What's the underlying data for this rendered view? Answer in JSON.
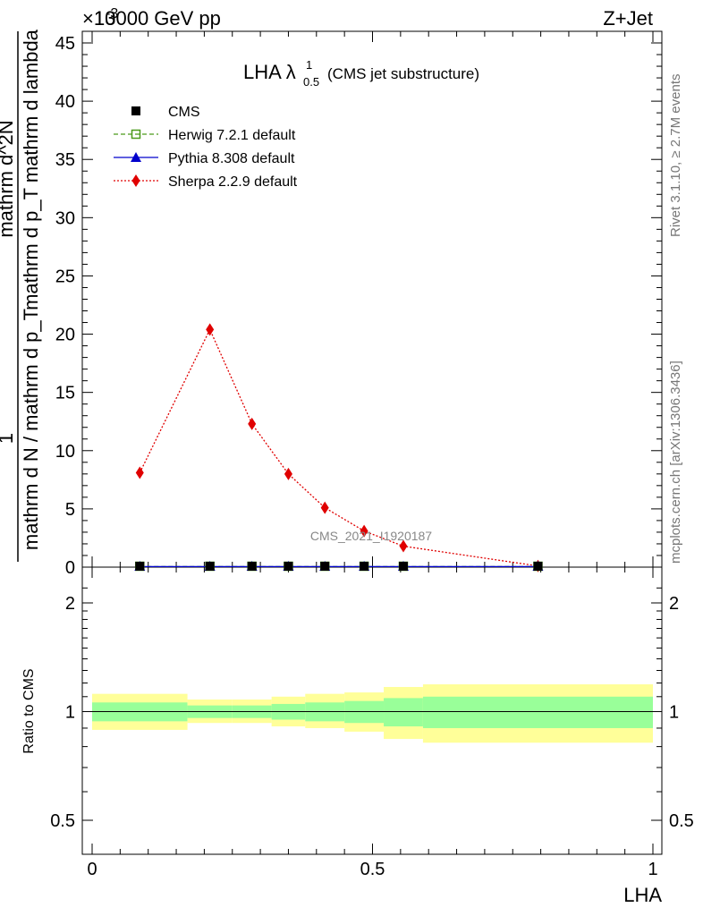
{
  "header": {
    "left": "13000 GeV pp",
    "right": "Z+Jet",
    "exponent": "×10",
    "exponent_power": "-3"
  },
  "side_text": {
    "rivet": "Rivet 3.1.10, ≥ 2.7M events",
    "mcplots": "mcplots.cern.ch [arXiv:1306.3436]"
  },
  "plot_title": {
    "main": "LHA λ",
    "sup": "1",
    "sub": "0.5",
    "rest": "(CMS jet substructure)"
  },
  "watermark": "CMS_2021_I1920187",
  "ylabel_main": {
    "numerator": "1",
    "denominator": "mathrm d N / mathrm d p_T",
    "numerator2": "mathrm d^2N",
    "denominator2": "mathrm d p_T mathrm d lambda"
  },
  "ylabel_ratio": "Ratio to CMS",
  "xlabel": "LHA",
  "legend": [
    {
      "name": "CMS",
      "color": "#000000",
      "marker": "square-filled",
      "line": "none"
    },
    {
      "name": "Herwig 7.2.1 default",
      "color": "#4a9a1a",
      "marker": "square-open",
      "line": "dashed"
    },
    {
      "name": "Pythia 8.308 default",
      "color": "#0000cc",
      "marker": "triangle",
      "line": "solid"
    },
    {
      "name": "Sherpa 2.2.9 default",
      "color": "#e00000",
      "marker": "diamond",
      "line": "dotted"
    }
  ],
  "chart_data": [
    {
      "type": "line",
      "panel": "main",
      "x_ticks": [
        "0",
        "0.5",
        "1"
      ],
      "y_ticks": [
        "0",
        "5",
        "10",
        "15",
        "20",
        "25",
        "30",
        "35",
        "40",
        "45"
      ],
      "xlim": [
        0,
        1
      ],
      "ylim": [
        0,
        46
      ],
      "series": [
        {
          "name": "CMS",
          "x": [
            0.085,
            0.21,
            0.285,
            0.35,
            0.415,
            0.485,
            0.555,
            0.795
          ],
          "values": [
            0.05,
            0.05,
            0.05,
            0.05,
            0.05,
            0.05,
            0.05,
            0.05
          ]
        },
        {
          "name": "Herwig 7.2.1 default",
          "x": [
            0.085,
            0.21,
            0.285,
            0.35,
            0.415,
            0.485,
            0.555,
            0.795
          ],
          "values": [
            0.05,
            0.05,
            0.05,
            0.05,
            0.05,
            0.05,
            0.05,
            0.05
          ]
        },
        {
          "name": "Pythia 8.308 default",
          "x": [
            0.085,
            0.21,
            0.285,
            0.35,
            0.415,
            0.485,
            0.555,
            0.795
          ],
          "values": [
            0.05,
            0.05,
            0.05,
            0.05,
            0.05,
            0.05,
            0.05,
            0.05
          ]
        },
        {
          "name": "Sherpa 2.2.9 default",
          "x": [
            0.085,
            0.21,
            0.285,
            0.35,
            0.415,
            0.485,
            0.555,
            0.795
          ],
          "values": [
            8.1,
            20.4,
            12.3,
            8.0,
            5.1,
            3.1,
            1.8,
            0.1
          ]
        }
      ]
    },
    {
      "type": "area",
      "panel": "ratio",
      "y_ticks": [
        "0.5",
        "1",
        "2"
      ],
      "ylim": [
        0.4,
        2.4
      ],
      "y_scale": "log",
      "bins": [
        0,
        0.17,
        0.25,
        0.32,
        0.38,
        0.45,
        0.52,
        0.59,
        1.0
      ],
      "band_inner": {
        "color": "#99ff99",
        "lo": [
          0.94,
          0.96,
          0.96,
          0.95,
          0.94,
          0.93,
          0.91,
          0.9
        ],
        "hi": [
          1.06,
          1.04,
          1.04,
          1.05,
          1.06,
          1.07,
          1.09,
          1.1
        ]
      },
      "band_outer": {
        "color": "#ffff99",
        "lo": [
          0.89,
          0.93,
          0.93,
          0.91,
          0.9,
          0.88,
          0.84,
          0.82
        ],
        "hi": [
          1.12,
          1.08,
          1.08,
          1.1,
          1.12,
          1.13,
          1.17,
          1.19
        ]
      },
      "reference": 1.0
    }
  ]
}
